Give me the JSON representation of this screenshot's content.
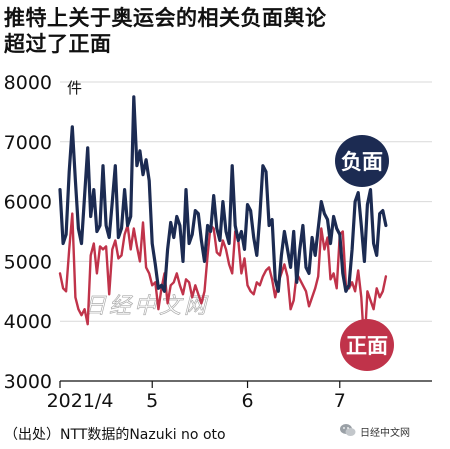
{
  "title_line1": "推特上关于奥运会的相关负面舆论",
  "title_line2": "超过了正面",
  "source_text": "（出处）NTT数据的Nazuki no oto",
  "brand_text": "日经中文网",
  "brand_icon": "wechat-icon",
  "watermark": "日经中文网",
  "colors": {
    "negative": "#1c2b52",
    "positive": "#c0334a",
    "grid": "#d9d9d9"
  },
  "chart_data": {
    "type": "line",
    "ylabel": "件",
    "ylim": [
      3000,
      8000
    ],
    "yticks": [
      3000,
      4000,
      5000,
      6000,
      7000,
      8000
    ],
    "xlim": [
      "2021-04-01",
      "2021-07-31"
    ],
    "xticks": [
      {
        "label": "2021/4",
        "date": "2021-04-01"
      },
      {
        "label": "5",
        "date": "2021-05-01"
      },
      {
        "label": "6",
        "date": "2021-06-01"
      },
      {
        "label": "7",
        "date": "2021-07-01"
      }
    ],
    "grid": "horizontal",
    "series": [
      {
        "name": "负面",
        "color": "#1c2b52",
        "points": [
          [
            "2021-04-01",
            6200
          ],
          [
            "2021-04-02",
            5300
          ],
          [
            "2021-04-03",
            5450
          ],
          [
            "2021-04-04",
            6500
          ],
          [
            "2021-04-05",
            7250
          ],
          [
            "2021-04-06",
            6350
          ],
          [
            "2021-04-07",
            5550
          ],
          [
            "2021-04-08",
            5300
          ],
          [
            "2021-04-09",
            6100
          ],
          [
            "2021-04-10",
            6900
          ],
          [
            "2021-04-11",
            5750
          ],
          [
            "2021-04-12",
            6200
          ],
          [
            "2021-04-13",
            5500
          ],
          [
            "2021-04-14",
            5600
          ],
          [
            "2021-04-15",
            6600
          ],
          [
            "2021-04-16",
            5600
          ],
          [
            "2021-04-17",
            5400
          ],
          [
            "2021-04-18",
            6000
          ],
          [
            "2021-04-19",
            6600
          ],
          [
            "2021-04-20",
            5400
          ],
          [
            "2021-04-21",
            5550
          ],
          [
            "2021-04-22",
            6200
          ],
          [
            "2021-04-23",
            5600
          ],
          [
            "2021-04-24",
            5750
          ],
          [
            "2021-04-25",
            7750
          ],
          [
            "2021-04-26",
            6600
          ],
          [
            "2021-04-27",
            6850
          ],
          [
            "2021-04-28",
            6450
          ],
          [
            "2021-04-29",
            6700
          ],
          [
            "2021-04-30",
            6350
          ],
          [
            "2021-05-01",
            5300
          ],
          [
            "2021-05-02",
            4950
          ],
          [
            "2021-05-03",
            4550
          ],
          [
            "2021-05-04",
            4600
          ],
          [
            "2021-05-05",
            4500
          ],
          [
            "2021-05-06",
            5200
          ],
          [
            "2021-05-07",
            5650
          ],
          [
            "2021-05-08",
            5400
          ],
          [
            "2021-05-09",
            5750
          ],
          [
            "2021-05-10",
            5600
          ],
          [
            "2021-05-11",
            5000
          ],
          [
            "2021-05-12",
            6200
          ],
          [
            "2021-05-13",
            5300
          ],
          [
            "2021-05-14",
            5450
          ],
          [
            "2021-05-15",
            5850
          ],
          [
            "2021-05-16",
            5800
          ],
          [
            "2021-05-17",
            5350
          ],
          [
            "2021-05-18",
            5000
          ],
          [
            "2021-05-19",
            5600
          ],
          [
            "2021-05-20",
            5500
          ],
          [
            "2021-05-21",
            6100
          ],
          [
            "2021-05-22",
            5550
          ],
          [
            "2021-05-23",
            5350
          ],
          [
            "2021-05-24",
            6000
          ],
          [
            "2021-05-25",
            5500
          ],
          [
            "2021-05-26",
            5300
          ],
          [
            "2021-05-27",
            6600
          ],
          [
            "2021-05-28",
            5600
          ],
          [
            "2021-05-29",
            5350
          ],
          [
            "2021-05-30",
            5500
          ],
          [
            "2021-05-31",
            5200
          ],
          [
            "2021-06-01",
            5950
          ],
          [
            "2021-06-02",
            5850
          ],
          [
            "2021-06-03",
            5400
          ],
          [
            "2021-06-04",
            5100
          ],
          [
            "2021-06-05",
            5750
          ],
          [
            "2021-06-06",
            6600
          ],
          [
            "2021-06-07",
            6500
          ],
          [
            "2021-06-08",
            5600
          ],
          [
            "2021-06-09",
            5700
          ],
          [
            "2021-06-10",
            4700
          ],
          [
            "2021-06-11",
            4500
          ],
          [
            "2021-06-12",
            5100
          ],
          [
            "2021-06-13",
            5500
          ],
          [
            "2021-06-14",
            5200
          ],
          [
            "2021-06-15",
            4900
          ],
          [
            "2021-06-16",
            5500
          ],
          [
            "2021-06-17",
            4650
          ],
          [
            "2021-06-18",
            5200
          ],
          [
            "2021-06-19",
            5600
          ],
          [
            "2021-06-20",
            4900
          ],
          [
            "2021-06-21",
            4800
          ],
          [
            "2021-06-22",
            5400
          ],
          [
            "2021-06-23",
            5100
          ],
          [
            "2021-06-24",
            5550
          ],
          [
            "2021-06-25",
            6000
          ],
          [
            "2021-06-26",
            5800
          ],
          [
            "2021-06-27",
            5700
          ],
          [
            "2021-06-28",
            5300
          ],
          [
            "2021-06-29",
            5750
          ],
          [
            "2021-06-30",
            5550
          ],
          [
            "2021-07-01",
            5450
          ],
          [
            "2021-07-02",
            4800
          ],
          [
            "2021-07-03",
            4500
          ],
          [
            "2021-07-04",
            4600
          ],
          [
            "2021-07-05",
            5200
          ],
          [
            "2021-07-06",
            6000
          ],
          [
            "2021-07-07",
            6150
          ],
          [
            "2021-07-08",
            5600
          ],
          [
            "2021-07-09",
            5000
          ],
          [
            "2021-07-10",
            5950
          ],
          [
            "2021-07-11",
            6200
          ],
          [
            "2021-07-12",
            5300
          ],
          [
            "2021-07-13",
            5100
          ],
          [
            "2021-07-14",
            5800
          ],
          [
            "2021-07-15",
            5850
          ],
          [
            "2021-07-16",
            5600
          ]
        ]
      },
      {
        "name": "正面",
        "color": "#c0334a",
        "points": [
          [
            "2021-04-01",
            4800
          ],
          [
            "2021-04-02",
            4550
          ],
          [
            "2021-04-03",
            4500
          ],
          [
            "2021-04-04",
            5200
          ],
          [
            "2021-04-05",
            5800
          ],
          [
            "2021-04-06",
            4400
          ],
          [
            "2021-04-07",
            4200
          ],
          [
            "2021-04-08",
            4100
          ],
          [
            "2021-04-09",
            4200
          ],
          [
            "2021-04-10",
            3950
          ],
          [
            "2021-04-11",
            5100
          ],
          [
            "2021-04-12",
            5300
          ],
          [
            "2021-04-13",
            4800
          ],
          [
            "2021-04-14",
            5250
          ],
          [
            "2021-04-15",
            5200
          ],
          [
            "2021-04-16",
            5250
          ],
          [
            "2021-04-17",
            4450
          ],
          [
            "2021-04-18",
            5200
          ],
          [
            "2021-04-19",
            5350
          ],
          [
            "2021-04-20",
            5050
          ],
          [
            "2021-04-21",
            5100
          ],
          [
            "2021-04-22",
            5450
          ],
          [
            "2021-04-23",
            5600
          ],
          [
            "2021-04-24",
            5200
          ],
          [
            "2021-04-25",
            5550
          ],
          [
            "2021-04-26",
            5250
          ],
          [
            "2021-04-27",
            5000
          ],
          [
            "2021-04-28",
            5650
          ],
          [
            "2021-04-29",
            4900
          ],
          [
            "2021-04-30",
            4800
          ],
          [
            "2021-05-01",
            4600
          ],
          [
            "2021-05-02",
            4650
          ],
          [
            "2021-05-03",
            4200
          ],
          [
            "2021-05-04",
            4550
          ],
          [
            "2021-05-05",
            4800
          ],
          [
            "2021-05-06",
            4300
          ],
          [
            "2021-05-07",
            4600
          ],
          [
            "2021-05-08",
            4650
          ],
          [
            "2021-05-09",
            4800
          ],
          [
            "2021-05-10",
            4600
          ],
          [
            "2021-05-11",
            4450
          ],
          [
            "2021-05-12",
            4700
          ],
          [
            "2021-05-13",
            4650
          ],
          [
            "2021-05-14",
            4400
          ],
          [
            "2021-05-15",
            4600
          ],
          [
            "2021-05-16",
            4450
          ],
          [
            "2021-05-17",
            4300
          ],
          [
            "2021-05-18",
            4500
          ],
          [
            "2021-05-19",
            5100
          ],
          [
            "2021-05-20",
            5600
          ],
          [
            "2021-05-21",
            5550
          ],
          [
            "2021-05-22",
            5150
          ],
          [
            "2021-05-23",
            5100
          ],
          [
            "2021-05-24",
            5350
          ],
          [
            "2021-05-25",
            5200
          ],
          [
            "2021-05-26",
            4950
          ],
          [
            "2021-05-27",
            4800
          ],
          [
            "2021-05-28",
            5500
          ],
          [
            "2021-05-29",
            5350
          ],
          [
            "2021-05-30",
            4800
          ],
          [
            "2021-05-31",
            5050
          ],
          [
            "2021-06-01",
            4600
          ],
          [
            "2021-06-02",
            4500
          ],
          [
            "2021-06-03",
            4450
          ],
          [
            "2021-06-04",
            4650
          ],
          [
            "2021-06-05",
            4600
          ],
          [
            "2021-06-06",
            4750
          ],
          [
            "2021-06-07",
            4850
          ],
          [
            "2021-06-08",
            4900
          ],
          [
            "2021-06-09",
            4700
          ],
          [
            "2021-06-10",
            4400
          ],
          [
            "2021-06-11",
            4650
          ],
          [
            "2021-06-12",
            4800
          ],
          [
            "2021-06-13",
            4950
          ],
          [
            "2021-06-14",
            4750
          ],
          [
            "2021-06-15",
            4200
          ],
          [
            "2021-06-16",
            4350
          ],
          [
            "2021-06-17",
            4800
          ],
          [
            "2021-06-18",
            4700
          ],
          [
            "2021-06-19",
            4600
          ],
          [
            "2021-06-20",
            4500
          ],
          [
            "2021-06-21",
            4250
          ],
          [
            "2021-06-22",
            4400
          ],
          [
            "2021-06-23",
            4550
          ],
          [
            "2021-06-24",
            4750
          ],
          [
            "2021-06-25",
            5550
          ],
          [
            "2021-06-26",
            5200
          ],
          [
            "2021-06-27",
            5400
          ],
          [
            "2021-06-28",
            4700
          ],
          [
            "2021-06-29",
            4800
          ],
          [
            "2021-06-30",
            4550
          ],
          [
            "2021-07-01",
            5450
          ],
          [
            "2021-07-02",
            5500
          ],
          [
            "2021-07-03",
            4600
          ],
          [
            "2021-07-04",
            4550
          ],
          [
            "2021-07-05",
            4650
          ],
          [
            "2021-07-06",
            4500
          ],
          [
            "2021-07-07",
            4850
          ],
          [
            "2021-07-08",
            4400
          ],
          [
            "2021-07-09",
            3550
          ],
          [
            "2021-07-10",
            4500
          ],
          [
            "2021-07-11",
            4350
          ],
          [
            "2021-07-12",
            4200
          ],
          [
            "2021-07-13",
            4550
          ],
          [
            "2021-07-14",
            4400
          ],
          [
            "2021-07-15",
            4500
          ],
          [
            "2021-07-16",
            4750
          ]
        ]
      }
    ]
  }
}
